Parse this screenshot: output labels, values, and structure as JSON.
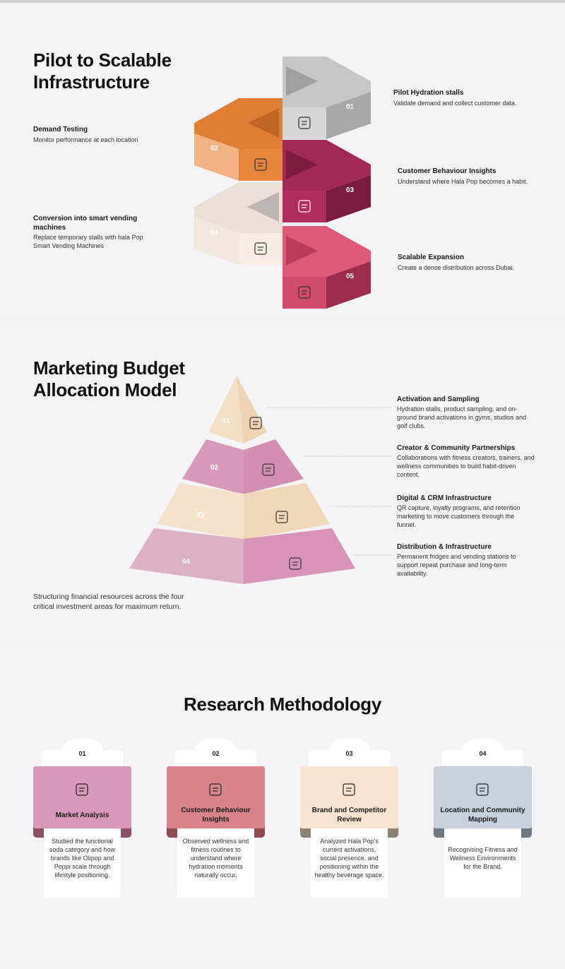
{
  "pilot": {
    "title": "Pilot to Scalable Infrastructure",
    "steps": [
      {
        "number": "01",
        "title": "Pilot Hydration stalls",
        "text": "Validate demand and collect customer data."
      },
      {
        "number": "02",
        "title": "Demand Testing",
        "text": "Monitor performance at each location"
      },
      {
        "number": "03",
        "title": "Customer Behaviour Insights",
        "text": "Understand where Hala Pop becomes a habit."
      },
      {
        "number": "04",
        "title": "Conversion into smart vending machines",
        "text": "Replace temporary stalls with hala Pop Smart Vending Machines"
      },
      {
        "number": "05",
        "title": "Scalable Expansion",
        "text": "Create a dense distribution across Dubai."
      }
    ]
  },
  "budget": {
    "title": "Marketing Budget Allocation Model",
    "levels": [
      {
        "number": "01",
        "title": "Activation and Sampling",
        "text": "Hydration stalls, product sampling, and on-ground brand activations in gyms, studios and golf clubs."
      },
      {
        "number": "02",
        "title": "Creator & Community Partnerships",
        "text": "Collaborations with fitness creators, trainers, and wellness communities to build habit-driven content."
      },
      {
        "number": "03",
        "title": "Digital & CRM Infrastructure",
        "text": "QR capture, loyalty programs, and retention marketing to move customers through the funnel."
      },
      {
        "number": "04",
        "title": "Distribution & Infrastructure",
        "text": "Permanent fridges and vending stations to support repeat purchase and long-term availability."
      }
    ],
    "caption": "Structuring financial resources across the four critical investment areas for maximum return."
  },
  "research": {
    "title": "Research Methodology",
    "cards": [
      {
        "number": "01",
        "title": "Market Analysis",
        "text": "Studied the functional soda category and how brands like Olipop and Poppi scale through lifestyle positioning."
      },
      {
        "number": "02",
        "title": "Customer Behaviour Insights",
        "text": "Observed wellness and fitness routines to understand where hydration moments naturally occur."
      },
      {
        "number": "03",
        "title": "Brand and Competitor Review",
        "text": "Analyzed Hala Pop's current activations, social presence, and positioning within the healthy beverage space."
      },
      {
        "number": "04",
        "title": "Location and Community Mapping",
        "text": "Recognising Fitness and Wellness Environments for the Brand."
      }
    ]
  }
}
